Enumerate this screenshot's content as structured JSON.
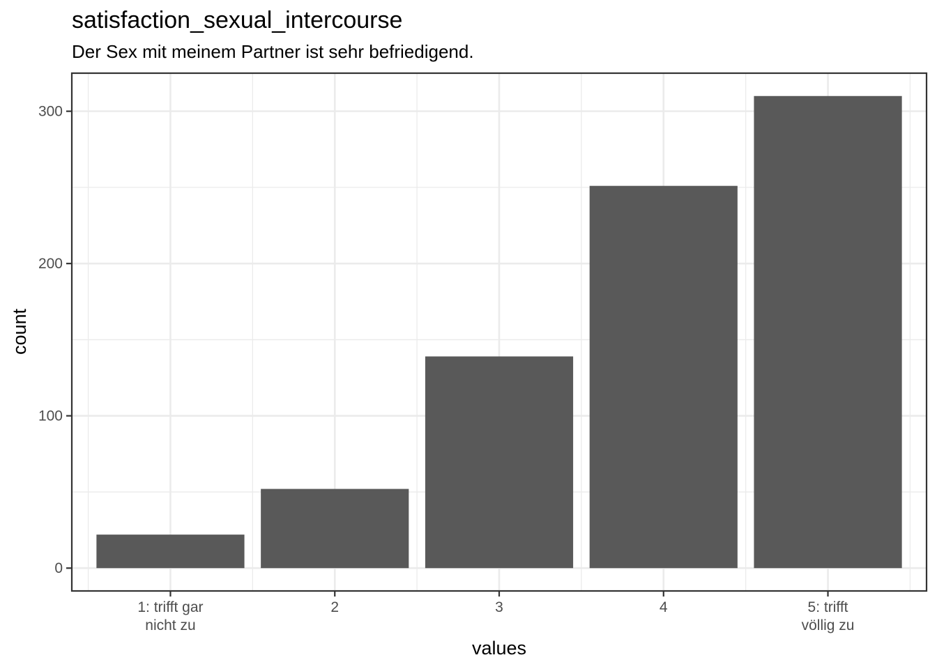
{
  "chart_data": {
    "type": "bar",
    "title": "satisfaction_sexual_intercourse",
    "subtitle": "Der Sex mit meinem Partner ist sehr befriedigend.",
    "xlabel": "values",
    "ylabel": "count",
    "categories": [
      [
        "1: trifft gar",
        "nicht zu"
      ],
      [
        "2"
      ],
      [
        "3"
      ],
      [
        "4"
      ],
      [
        "5: trifft",
        "völlig zu"
      ]
    ],
    "values": [
      22,
      52,
      139,
      251,
      310
    ],
    "ylim": [
      -15,
      325
    ],
    "y_ticks": [
      0,
      100,
      200,
      300
    ],
    "y_tick_labels": [
      "0",
      "100",
      "200",
      "300"
    ],
    "grid": true,
    "legend": "none",
    "colors": {
      "bar": "#595959",
      "grid": "#ebebeb",
      "border": "#333333",
      "tick_text": "#4d4d4d"
    }
  }
}
